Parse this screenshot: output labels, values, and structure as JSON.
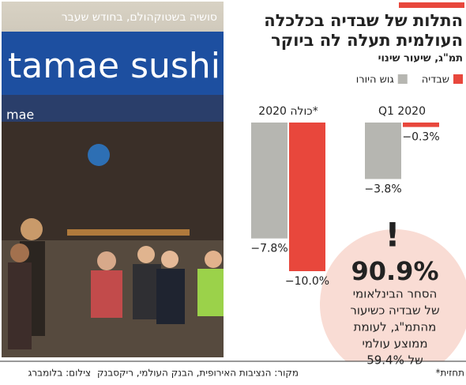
{
  "photo": {
    "caption": "סושיה בשטוקהולם, בחודש שעבר",
    "sign_text": "tamae sushi",
    "small_sign_text": "mae"
  },
  "chart_data": {
    "type": "bar",
    "title": [
      "התלות של שבדיה בכלכלה",
      "העולמית תעלה לה ביוקר"
    ],
    "subtitle": "תמ\"ג, שיעור שינוי",
    "categories": [
      "Q1 2020",
      "2020 כולה*"
    ],
    "series": [
      {
        "name": "שבדיה",
        "color": "#e8473c",
        "values": [
          -0.3,
          -10.0
        ],
        "value_labels": [
          "−0.3%",
          "−10.0%"
        ]
      },
      {
        "name": "גוש היורו",
        "color": "#b6b6b1",
        "values": [
          -3.8,
          -7.8
        ],
        "value_labels": [
          "−3.8%",
          "−7.8%"
        ]
      }
    ],
    "ylim": [
      -10,
      0
    ]
  },
  "callout": {
    "mark": "!",
    "value": "90.9%",
    "lines": [
      "הסחר הבינלאומי",
      "של שבדיה כשיעור",
      "מהתמ\"ג, לעומת",
      "ממוצע עולמי",
      "של 59.4%"
    ]
  },
  "footer": {
    "note": "*תחזית",
    "source": "מקור: הנציבות האירופית, הבנק העולמי, ריקסבנק",
    "credit": "צילום: בלומברג"
  }
}
